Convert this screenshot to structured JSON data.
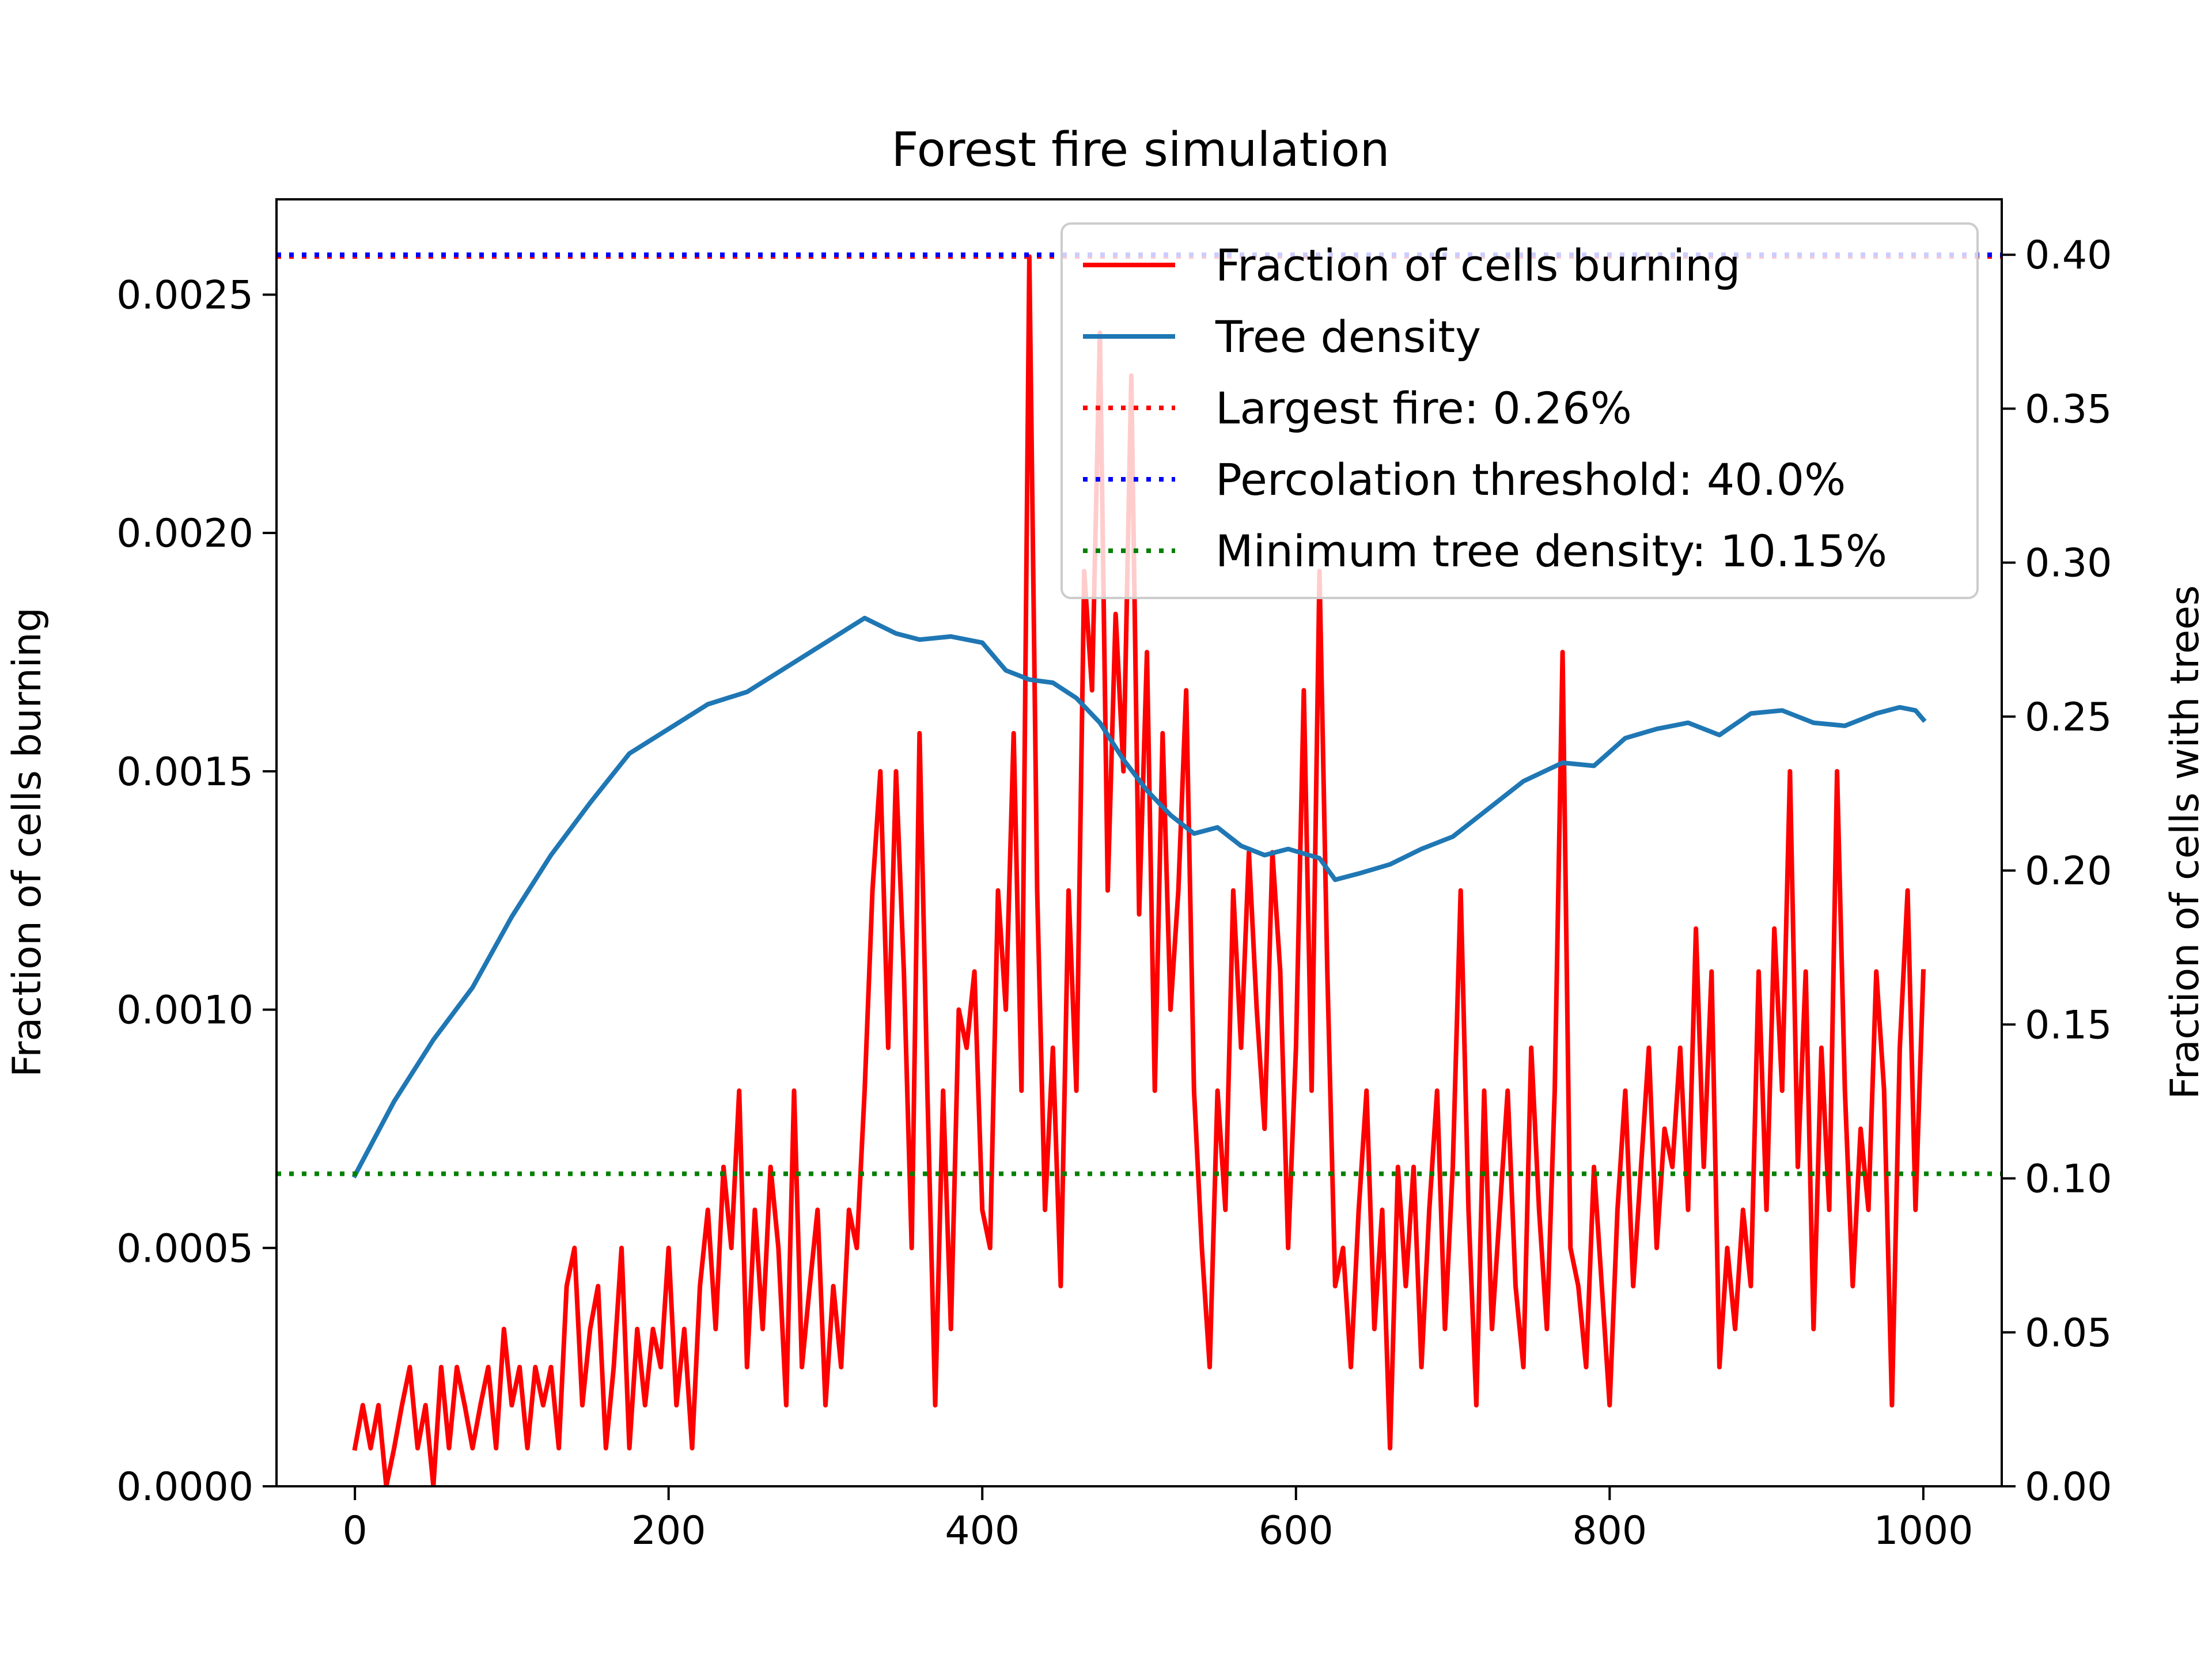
{
  "chart_data": {
    "type": "line",
    "title": "Forest fire simulation",
    "xlabel": "",
    "ylabel_left": "Fraction of cells burning",
    "ylabel_right": "Fraction of cells with trees",
    "xlim": [
      -50,
      1050
    ],
    "ylim_left": [
      0,
      0.0027
    ],
    "ylim_right": [
      0,
      0.418
    ],
    "x_ticks": [
      0,
      200,
      400,
      600,
      800,
      1000
    ],
    "x_tick_labels": [
      "0",
      "200",
      "400",
      "600",
      "800",
      "1000"
    ],
    "y_left_ticks": [
      0,
      0.0005,
      0.001,
      0.0015,
      0.002,
      0.0025
    ],
    "y_left_tick_labels": [
      "0.0000",
      "0.0005",
      "0.0010",
      "0.0015",
      "0.0020",
      "0.0025"
    ],
    "y_right_ticks": [
      0,
      0.05,
      0.1,
      0.15,
      0.2,
      0.25,
      0.3,
      0.35,
      0.4
    ],
    "y_right_tick_labels": [
      "0.00",
      "0.05",
      "0.10",
      "0.15",
      "0.20",
      "0.25",
      "0.30",
      "0.35",
      "0.40"
    ],
    "legend_position": "upper-right",
    "series": [
      {
        "name": "Fraction of cells burning",
        "axis": "left",
        "color": "#ff0000",
        "style": "solid",
        "keypoints": [
          [
            0,
            8e-05
          ],
          [
            5,
            0.00017
          ],
          [
            10,
            8e-05
          ],
          [
            15,
            0.00017
          ],
          [
            20,
            0.0
          ],
          [
            25,
            8e-05
          ],
          [
            30,
            0.00017
          ],
          [
            35,
            0.00025
          ],
          [
            40,
            8e-05
          ],
          [
            45,
            0.00017
          ],
          [
            50,
            0.0
          ],
          [
            55,
            0.00025
          ],
          [
            60,
            8e-05
          ],
          [
            65,
            0.00025
          ],
          [
            70,
            0.00017
          ],
          [
            75,
            8e-05
          ],
          [
            80,
            0.00017
          ],
          [
            85,
            0.00025
          ],
          [
            90,
            8e-05
          ],
          [
            95,
            0.00033
          ],
          [
            100,
            0.00017
          ],
          [
            105,
            0.00025
          ],
          [
            110,
            8e-05
          ],
          [
            115,
            0.00025
          ],
          [
            120,
            0.00017
          ],
          [
            125,
            0.00025
          ],
          [
            130,
            8e-05
          ],
          [
            135,
            0.00042
          ],
          [
            140,
            0.0005
          ],
          [
            145,
            0.00017
          ],
          [
            150,
            0.00033
          ],
          [
            155,
            0.00042
          ],
          [
            160,
            8e-05
          ],
          [
            165,
            0.00025
          ],
          [
            170,
            0.0005
          ],
          [
            175,
            8e-05
          ],
          [
            180,
            0.00033
          ],
          [
            185,
            0.00017
          ],
          [
            190,
            0.00033
          ],
          [
            195,
            0.00025
          ],
          [
            200,
            0.0005
          ],
          [
            205,
            0.00017
          ],
          [
            210,
            0.00033
          ],
          [
            215,
            8e-05
          ],
          [
            220,
            0.00042
          ],
          [
            225,
            0.00058
          ],
          [
            230,
            0.00033
          ],
          [
            235,
            0.00067
          ],
          [
            240,
            0.0005
          ],
          [
            245,
            0.00083
          ],
          [
            250,
            0.00025
          ],
          [
            255,
            0.00058
          ],
          [
            260,
            0.00033
          ],
          [
            265,
            0.00067
          ],
          [
            270,
            0.0005
          ],
          [
            275,
            0.00017
          ],
          [
            280,
            0.00083
          ],
          [
            285,
            0.00025
          ],
          [
            290,
            0.00042
          ],
          [
            295,
            0.00058
          ],
          [
            300,
            0.00017
          ],
          [
            305,
            0.00042
          ],
          [
            310,
            0.00025
          ],
          [
            315,
            0.00058
          ],
          [
            320,
            0.0005
          ],
          [
            325,
            0.00083
          ],
          [
            330,
            0.00125
          ],
          [
            335,
            0.0015
          ],
          [
            340,
            0.00092
          ],
          [
            345,
            0.0015
          ],
          [
            350,
            0.00108
          ],
          [
            355,
            0.0005
          ],
          [
            360,
            0.00158
          ],
          [
            365,
            0.00083
          ],
          [
            370,
            0.00017
          ],
          [
            375,
            0.00083
          ],
          [
            380,
            0.00033
          ],
          [
            385,
            0.001
          ],
          [
            390,
            0.00092
          ],
          [
            395,
            0.00108
          ],
          [
            400,
            0.00058
          ],
          [
            405,
            0.0005
          ],
          [
            410,
            0.00125
          ],
          [
            415,
            0.001
          ],
          [
            420,
            0.00158
          ],
          [
            425,
            0.00083
          ],
          [
            430,
            0.00258
          ],
          [
            435,
            0.00125
          ],
          [
            440,
            0.00058
          ],
          [
            445,
            0.00092
          ],
          [
            450,
            0.00042
          ],
          [
            455,
            0.00125
          ],
          [
            460,
            0.00083
          ],
          [
            465,
            0.00192
          ],
          [
            470,
            0.00167
          ],
          [
            475,
            0.00242
          ],
          [
            480,
            0.00125
          ],
          [
            485,
            0.00183
          ],
          [
            490,
            0.0015
          ],
          [
            495,
            0.00233
          ],
          [
            500,
            0.0012
          ],
          [
            505,
            0.00175
          ],
          [
            510,
            0.00083
          ],
          [
            515,
            0.00158
          ],
          [
            520,
            0.001
          ],
          [
            525,
            0.00125
          ],
          [
            530,
            0.00167
          ],
          [
            535,
            0.00083
          ],
          [
            540,
            0.0005
          ],
          [
            545,
            0.00025
          ],
          [
            550,
            0.00083
          ],
          [
            555,
            0.00058
          ],
          [
            560,
            0.00125
          ],
          [
            565,
            0.00092
          ],
          [
            570,
            0.00133
          ],
          [
            575,
            0.001
          ],
          [
            580,
            0.00075
          ],
          [
            585,
            0.00133
          ],
          [
            590,
            0.00108
          ],
          [
            595,
            0.0005
          ],
          [
            600,
            0.00092
          ],
          [
            605,
            0.00167
          ],
          [
            610,
            0.00083
          ],
          [
            615,
            0.00192
          ],
          [
            620,
            0.00108
          ],
          [
            625,
            0.00042
          ],
          [
            630,
            0.0005
          ],
          [
            635,
            0.00025
          ],
          [
            640,
            0.00058
          ],
          [
            645,
            0.00083
          ],
          [
            650,
            0.00033
          ],
          [
            655,
            0.00058
          ],
          [
            660,
            8e-05
          ],
          [
            665,
            0.00067
          ],
          [
            670,
            0.00042
          ],
          [
            675,
            0.00067
          ],
          [
            680,
            0.00025
          ],
          [
            685,
            0.00058
          ],
          [
            690,
            0.00083
          ],
          [
            695,
            0.00033
          ],
          [
            700,
            0.00067
          ],
          [
            705,
            0.00125
          ],
          [
            710,
            0.00058
          ],
          [
            715,
            0.00017
          ],
          [
            720,
            0.00083
          ],
          [
            725,
            0.00033
          ],
          [
            730,
            0.00058
          ],
          [
            735,
            0.00083
          ],
          [
            740,
            0.00042
          ],
          [
            745,
            0.00025
          ],
          [
            750,
            0.00092
          ],
          [
            755,
            0.00058
          ],
          [
            760,
            0.00033
          ],
          [
            765,
            0.00083
          ],
          [
            770,
            0.00175
          ],
          [
            775,
            0.0005
          ],
          [
            780,
            0.00042
          ],
          [
            785,
            0.00025
          ],
          [
            790,
            0.00067
          ],
          [
            795,
            0.00042
          ],
          [
            800,
            0.00017
          ],
          [
            805,
            0.00058
          ],
          [
            810,
            0.00083
          ],
          [
            815,
            0.00042
          ],
          [
            820,
            0.00067
          ],
          [
            825,
            0.00092
          ],
          [
            830,
            0.0005
          ],
          [
            835,
            0.00075
          ],
          [
            840,
            0.00067
          ],
          [
            845,
            0.00092
          ],
          [
            850,
            0.00058
          ],
          [
            855,
            0.00117
          ],
          [
            860,
            0.00067
          ],
          [
            865,
            0.00108
          ],
          [
            870,
            0.00025
          ],
          [
            875,
            0.0005
          ],
          [
            880,
            0.00033
          ],
          [
            885,
            0.00058
          ],
          [
            890,
            0.00042
          ],
          [
            895,
            0.00108
          ],
          [
            900,
            0.00058
          ],
          [
            905,
            0.00117
          ],
          [
            910,
            0.00083
          ],
          [
            915,
            0.0015
          ],
          [
            920,
            0.00067
          ],
          [
            925,
            0.00108
          ],
          [
            930,
            0.00033
          ],
          [
            935,
            0.00092
          ],
          [
            940,
            0.00058
          ],
          [
            945,
            0.0015
          ],
          [
            950,
            0.00083
          ],
          [
            955,
            0.00042
          ],
          [
            960,
            0.00075
          ],
          [
            965,
            0.00058
          ],
          [
            970,
            0.00108
          ],
          [
            975,
            0.00083
          ],
          [
            980,
            0.00017
          ],
          [
            985,
            0.00092
          ],
          [
            990,
            0.00125
          ],
          [
            995,
            0.00058
          ],
          [
            1000,
            0.00108
          ]
        ]
      },
      {
        "name": "Tree density",
        "axis": "right",
        "color": "#1f77b4",
        "style": "solid",
        "keypoints": [
          [
            0,
            0.101
          ],
          [
            25,
            0.125
          ],
          [
            50,
            0.145
          ],
          [
            75,
            0.162
          ],
          [
            100,
            0.185
          ],
          [
            125,
            0.205
          ],
          [
            150,
            0.222
          ],
          [
            175,
            0.238
          ],
          [
            200,
            0.246
          ],
          [
            225,
            0.254
          ],
          [
            250,
            0.258
          ],
          [
            275,
            0.266
          ],
          [
            300,
            0.274
          ],
          [
            325,
            0.282
          ],
          [
            345,
            0.277
          ],
          [
            360,
            0.275
          ],
          [
            380,
            0.276
          ],
          [
            400,
            0.274
          ],
          [
            415,
            0.265
          ],
          [
            430,
            0.262
          ],
          [
            445,
            0.261
          ],
          [
            460,
            0.256
          ],
          [
            475,
            0.248
          ],
          [
            490,
            0.236
          ],
          [
            505,
            0.226
          ],
          [
            520,
            0.218
          ],
          [
            535,
            0.212
          ],
          [
            550,
            0.214
          ],
          [
            565,
            0.208
          ],
          [
            580,
            0.205
          ],
          [
            595,
            0.207
          ],
          [
            615,
            0.204
          ],
          [
            625,
            0.197
          ],
          [
            640,
            0.199
          ],
          [
            660,
            0.202
          ],
          [
            680,
            0.207
          ],
          [
            700,
            0.211
          ],
          [
            720,
            0.219
          ],
          [
            745,
            0.229
          ],
          [
            770,
            0.235
          ],
          [
            790,
            0.234
          ],
          [
            810,
            0.243
          ],
          [
            830,
            0.246
          ],
          [
            850,
            0.248
          ],
          [
            870,
            0.244
          ],
          [
            890,
            0.251
          ],
          [
            910,
            0.252
          ],
          [
            930,
            0.248
          ],
          [
            950,
            0.247
          ],
          [
            970,
            0.251
          ],
          [
            985,
            0.253
          ],
          [
            995,
            0.252
          ],
          [
            1000,
            0.249
          ]
        ]
      },
      {
        "name": "Largest fire: 0.26%",
        "axis": "left",
        "color": "#ff0000",
        "style": "dotted",
        "y": 0.00258
      },
      {
        "name": "Percolation threshold: 40.0%",
        "axis": "right",
        "color": "#0000ff",
        "style": "dotted",
        "y": 0.4
      },
      {
        "name": "Minimum tree density: 10.15%",
        "axis": "right",
        "color": "#008000",
        "style": "dotted",
        "y": 0.1015
      }
    ]
  }
}
